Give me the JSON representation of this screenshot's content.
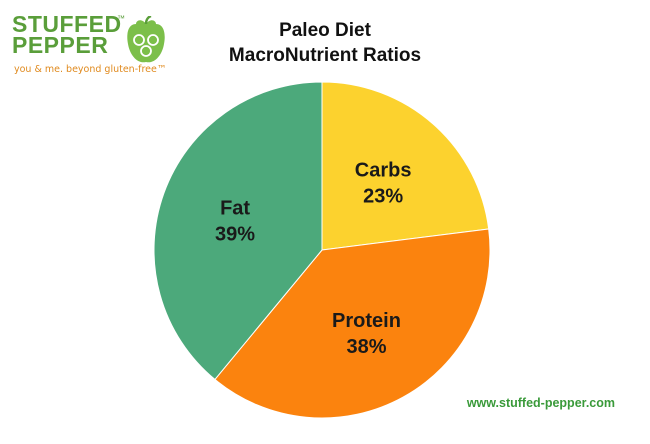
{
  "logo": {
    "line1": "STUFFED",
    "line2": "PEPPER",
    "tm": "™",
    "tagline": "you & me. beyond gluten-free™"
  },
  "chart_data": {
    "type": "pie",
    "title_line1": "Paleo Diet",
    "title_line2": "MacroNutrient Ratios",
    "slices": [
      {
        "label": "Carbs",
        "value": 23,
        "value_label": "23%",
        "color": "#fcd22e"
      },
      {
        "label": "Protein",
        "value": 38,
        "value_label": "38%",
        "color": "#fb830e"
      },
      {
        "label": "Fat",
        "value": 39,
        "value_label": "39%",
        "color": "#4ca97b"
      }
    ]
  },
  "footer": {
    "url": "www.stuffed-pepper.com"
  }
}
